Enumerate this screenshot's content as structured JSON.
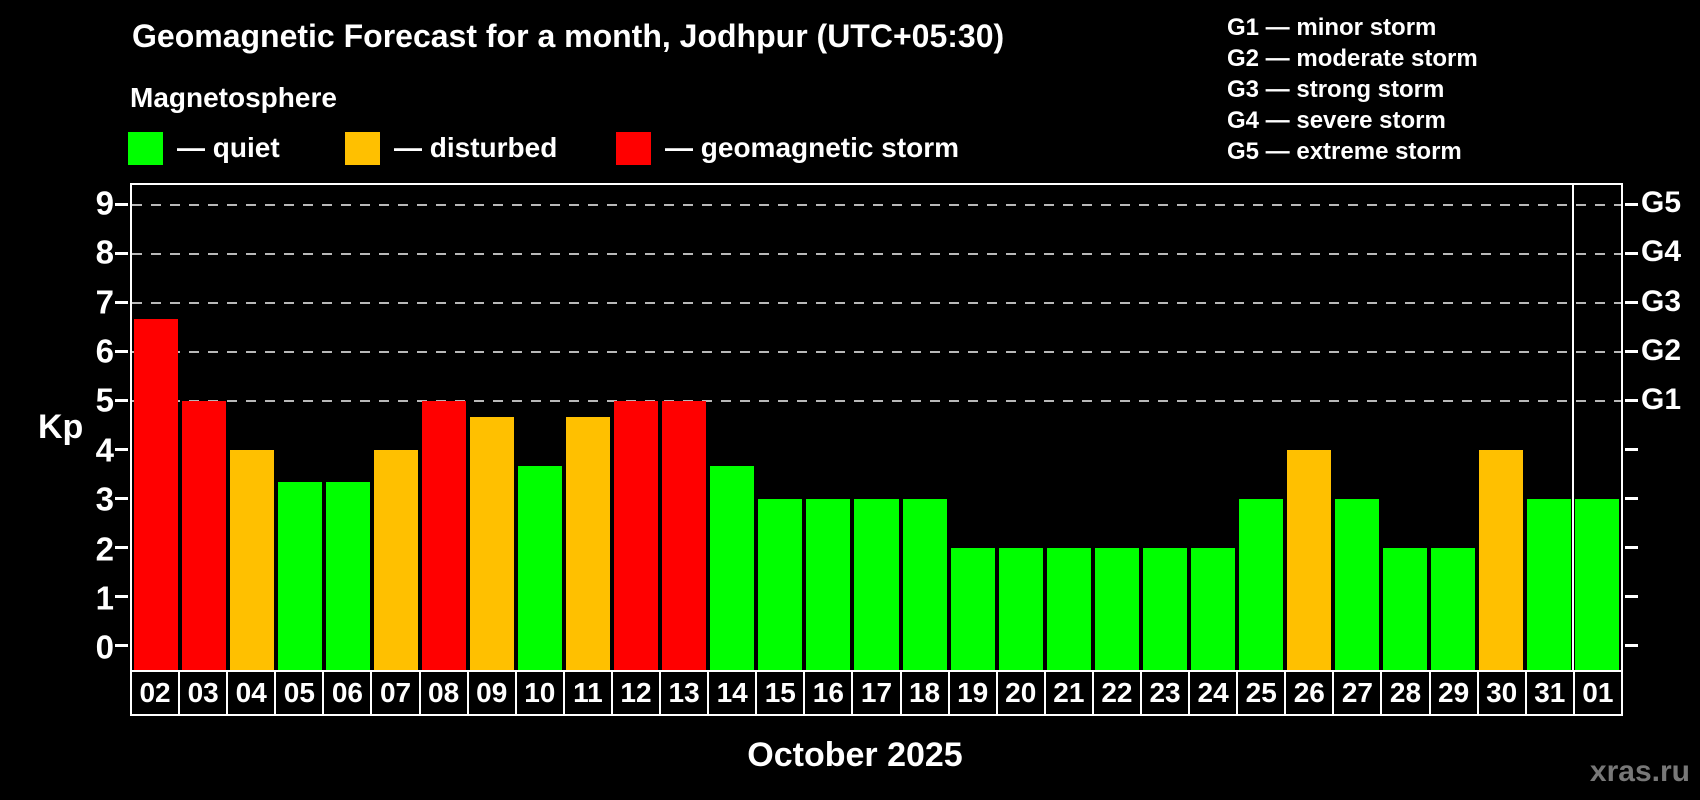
{
  "title": "Geomagnetic Forecast for a month, Jodhpur (UTC+05:30)",
  "subtitle": "Magnetosphere",
  "watermark": "xras.ru",
  "colors": {
    "quiet": "#00ff00",
    "disturbed": "#ffc000",
    "storm": "#ff0000",
    "axis": "#ffffff",
    "gridline": "#b8b8b8",
    "watermark": "#787878"
  },
  "legend": {
    "items": [
      {
        "key": "quiet",
        "label": "— quiet"
      },
      {
        "key": "disturbed",
        "label": "— disturbed"
      },
      {
        "key": "storm",
        "label": "— geomagnetic storm"
      }
    ]
  },
  "storm_scale_legend": [
    "G1 — minor storm",
    "G2 — moderate storm",
    "G3 — strong storm",
    "G4 — severe storm",
    "G5 — extreme storm"
  ],
  "chart_data": {
    "type": "bar",
    "title": "Geomagnetic Forecast for a month, Jodhpur (UTC+05:30)",
    "ylabel": "Kp",
    "xlabel": "October 2025",
    "ylim": [
      -0.5,
      9.4
    ],
    "yticks": [
      0,
      1,
      2,
      3,
      4,
      5,
      6,
      7,
      8,
      9
    ],
    "gridlines": [
      5,
      6,
      7,
      8,
      9
    ],
    "grid": "dashed horizontal at storm levels only",
    "legend_position": "top",
    "right_axis_labels": [
      {
        "label": "G1",
        "kp": 5
      },
      {
        "label": "G2",
        "kp": 6
      },
      {
        "label": "G3",
        "kp": 7
      },
      {
        "label": "G4",
        "kp": 8
      },
      {
        "label": "G5",
        "kp": 9
      }
    ],
    "categories": [
      "02",
      "03",
      "04",
      "05",
      "06",
      "07",
      "08",
      "09",
      "10",
      "11",
      "12",
      "13",
      "14",
      "15",
      "16",
      "17",
      "18",
      "19",
      "20",
      "21",
      "22",
      "23",
      "24",
      "25",
      "26",
      "27",
      "28",
      "29",
      "30",
      "31",
      "01"
    ],
    "values": [
      6.67,
      5,
      4,
      3.33,
      3.33,
      4,
      5,
      4.67,
      3.67,
      4.67,
      5,
      5,
      3.67,
      3,
      3,
      3,
      3,
      2,
      2,
      2,
      2,
      2,
      2,
      3,
      4,
      3,
      2,
      2,
      4,
      3,
      3
    ],
    "statuses": [
      "storm",
      "storm",
      "disturbed",
      "quiet",
      "quiet",
      "disturbed",
      "storm",
      "disturbed",
      "quiet",
      "disturbed",
      "storm",
      "storm",
      "quiet",
      "quiet",
      "quiet",
      "quiet",
      "quiet",
      "quiet",
      "quiet",
      "quiet",
      "quiet",
      "quiet",
      "quiet",
      "quiet",
      "disturbed",
      "quiet",
      "quiet",
      "quiet",
      "disturbed",
      "quiet",
      "quiet"
    ],
    "month_separator_at_column": 30
  }
}
